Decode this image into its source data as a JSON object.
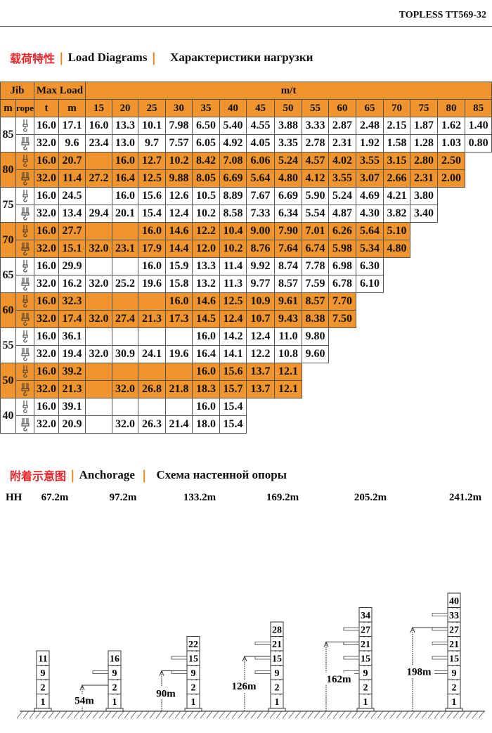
{
  "header": {
    "title": "TOPLESS TT569-32"
  },
  "load_section": {
    "zh": "载荷特性",
    "en": "Load Diagrams",
    "ru": "Характеристики нагрузки"
  },
  "table": {
    "head1": {
      "jib": "Jib",
      "maxload": "Max Load",
      "mt": "m/t"
    },
    "head2": {
      "m": "m",
      "rope": "rope",
      "t": "t",
      "mm": "m"
    },
    "radii": [
      "15",
      "20",
      "25",
      "30",
      "35",
      "40",
      "45",
      "50",
      "55",
      "60",
      "65",
      "70",
      "75",
      "80",
      "85"
    ],
    "rows": [
      {
        "jib": "85",
        "orange": false,
        "r2": {
          "t": "16.0",
          "m": "17.1",
          "v": [
            "16.0",
            "13.3",
            "10.1",
            "7.98",
            "6.50",
            "5.40",
            "4.55",
            "3.88",
            "3.33",
            "2.87",
            "2.48",
            "2.15",
            "1.87",
            "1.62",
            "1.40"
          ]
        },
        "r4": {
          "t": "32.0",
          "m": "9.6",
          "v": [
            "23.4",
            "13.0",
            "9.7",
            "7.57",
            "6.05",
            "4.92",
            "4.05",
            "3.35",
            "2.78",
            "2.31",
            "1.92",
            "1.58",
            "1.28",
            "1.03",
            "0.80"
          ]
        }
      },
      {
        "jib": "80",
        "orange": true,
        "r2": {
          "t": "16.0",
          "m": "20.7",
          "v": [
            "",
            "16.0",
            "12.7",
            "10.2",
            "8.42",
            "7.08",
            "6.06",
            "5.24",
            "4.57",
            "4.02",
            "3.55",
            "3.15",
            "2.80",
            "2.50"
          ]
        },
        "r4": {
          "t": "32.0",
          "m": "11.4",
          "v": [
            "27.2",
            "16.4",
            "12.5",
            "9.88",
            "8.05",
            "6.69",
            "5.64",
            "4.80",
            "4.12",
            "3.55",
            "3.07",
            "2.66",
            "2.31",
            "2.00"
          ]
        }
      },
      {
        "jib": "75",
        "orange": false,
        "r2": {
          "t": "16.0",
          "m": "24.5",
          "v": [
            "",
            "16.0",
            "15.6",
            "12.6",
            "10.5",
            "8.89",
            "7.67",
            "6.69",
            "5.90",
            "5.24",
            "4.69",
            "4.21",
            "3.80"
          ]
        },
        "r4": {
          "t": "32.0",
          "m": "13.4",
          "v": [
            "29.4",
            "20.1",
            "15.4",
            "12.4",
            "10.2",
            "8.58",
            "7.33",
            "6.34",
            "5.54",
            "4.87",
            "4.30",
            "3.82",
            "3.40"
          ]
        }
      },
      {
        "jib": "70",
        "orange": true,
        "r2": {
          "t": "16.0",
          "m": "27.7",
          "v": [
            "",
            "",
            "16.0",
            "14.6",
            "12.2",
            "10.4",
            "9.00",
            "7.90",
            "7.01",
            "6.26",
            "5.64",
            "5.10"
          ]
        },
        "r4": {
          "t": "32.0",
          "m": "15.1",
          "v": [
            "32.0",
            "23.1",
            "17.9",
            "14.4",
            "12.0",
            "10.2",
            "8.76",
            "7.64",
            "6.74",
            "5.98",
            "5.34",
            "4.80"
          ]
        }
      },
      {
        "jib": "65",
        "orange": false,
        "r2": {
          "t": "16.0",
          "m": "29.9",
          "v": [
            "",
            "",
            "16.0",
            "15.9",
            "13.3",
            "11.4",
            "9.92",
            "8.74",
            "7.78",
            "6.98",
            "6.30"
          ]
        },
        "r4": {
          "t": "32.0",
          "m": "16.2",
          "v": [
            "32.0",
            "25.2",
            "19.6",
            "15.8",
            "13.2",
            "11.3",
            "9.77",
            "8.57",
            "7.59",
            "6.78",
            "6.10"
          ]
        }
      },
      {
        "jib": "60",
        "orange": true,
        "r2": {
          "t": "16.0",
          "m": "32.3",
          "v": [
            "",
            "",
            "",
            "16.0",
            "14.6",
            "12.5",
            "10.9",
            "9.61",
            "8.57",
            "7.70"
          ]
        },
        "r4": {
          "t": "32.0",
          "m": "17.4",
          "v": [
            "32.0",
            "27.4",
            "21.3",
            "17.3",
            "14.5",
            "12.4",
            "10.7",
            "9.43",
            "8.38",
            "7.50"
          ]
        }
      },
      {
        "jib": "55",
        "orange": false,
        "r2": {
          "t": "16.0",
          "m": "36.1",
          "v": [
            "",
            "",
            "",
            "",
            "16.0",
            "14.2",
            "12.4",
            "11.0",
            "9.80"
          ]
        },
        "r4": {
          "t": "32.0",
          "m": "19.4",
          "v": [
            "32.0",
            "30.9",
            "24.1",
            "19.6",
            "16.4",
            "14.1",
            "12.2",
            "10.8",
            "9.60"
          ]
        }
      },
      {
        "jib": "50",
        "orange": true,
        "r2": {
          "t": "16.0",
          "m": "39.2",
          "v": [
            "",
            "",
            "",
            "",
            "16.0",
            "15.6",
            "13.7",
            "12.1"
          ]
        },
        "r4": {
          "t": "32.0",
          "m": "21.3",
          "v": [
            "",
            "32.0",
            "26.8",
            "21.8",
            "18.3",
            "15.7",
            "13.7",
            "12.1"
          ]
        }
      },
      {
        "jib": "40",
        "orange": false,
        "r2": {
          "t": "16.0",
          "m": "39.1",
          "v": [
            "",
            "",
            "",
            "",
            "16.0",
            "15.4"
          ]
        },
        "r4": {
          "t": "32.0",
          "m": "20.9",
          "v": [
            "",
            "32.0",
            "26.3",
            "21.4",
            "18.0",
            "15.4"
          ]
        }
      }
    ]
  },
  "anchor_section": {
    "zh": "附着示意图",
    "en": "Anchorage",
    "ru": "Схема настенной опоры"
  },
  "anchor": {
    "hh_label": "HH",
    "towers": [
      {
        "hh": "67.2m",
        "dist": "",
        "labels": [
          "1",
          "2",
          "9",
          "11"
        ]
      },
      {
        "hh": "97.2m",
        "dist": "54m",
        "labels": [
          "1",
          "2",
          "9",
          "16"
        ]
      },
      {
        "hh": "133.2m",
        "dist": "90m",
        "labels": [
          "1",
          "2",
          "9",
          "15",
          "22"
        ]
      },
      {
        "hh": "169.2m",
        "dist": "126m",
        "labels": [
          "1",
          "2",
          "9",
          "15",
          "21",
          "28"
        ]
      },
      {
        "hh": "205.2m",
        "dist": "162m",
        "labels": [
          "1",
          "2",
          "9",
          "15",
          "21",
          "27",
          "34"
        ]
      },
      {
        "hh": "241.2m",
        "dist": "198m",
        "labels": [
          "1",
          "2",
          "9",
          "15",
          "21",
          "27",
          "33",
          "40"
        ]
      }
    ]
  }
}
